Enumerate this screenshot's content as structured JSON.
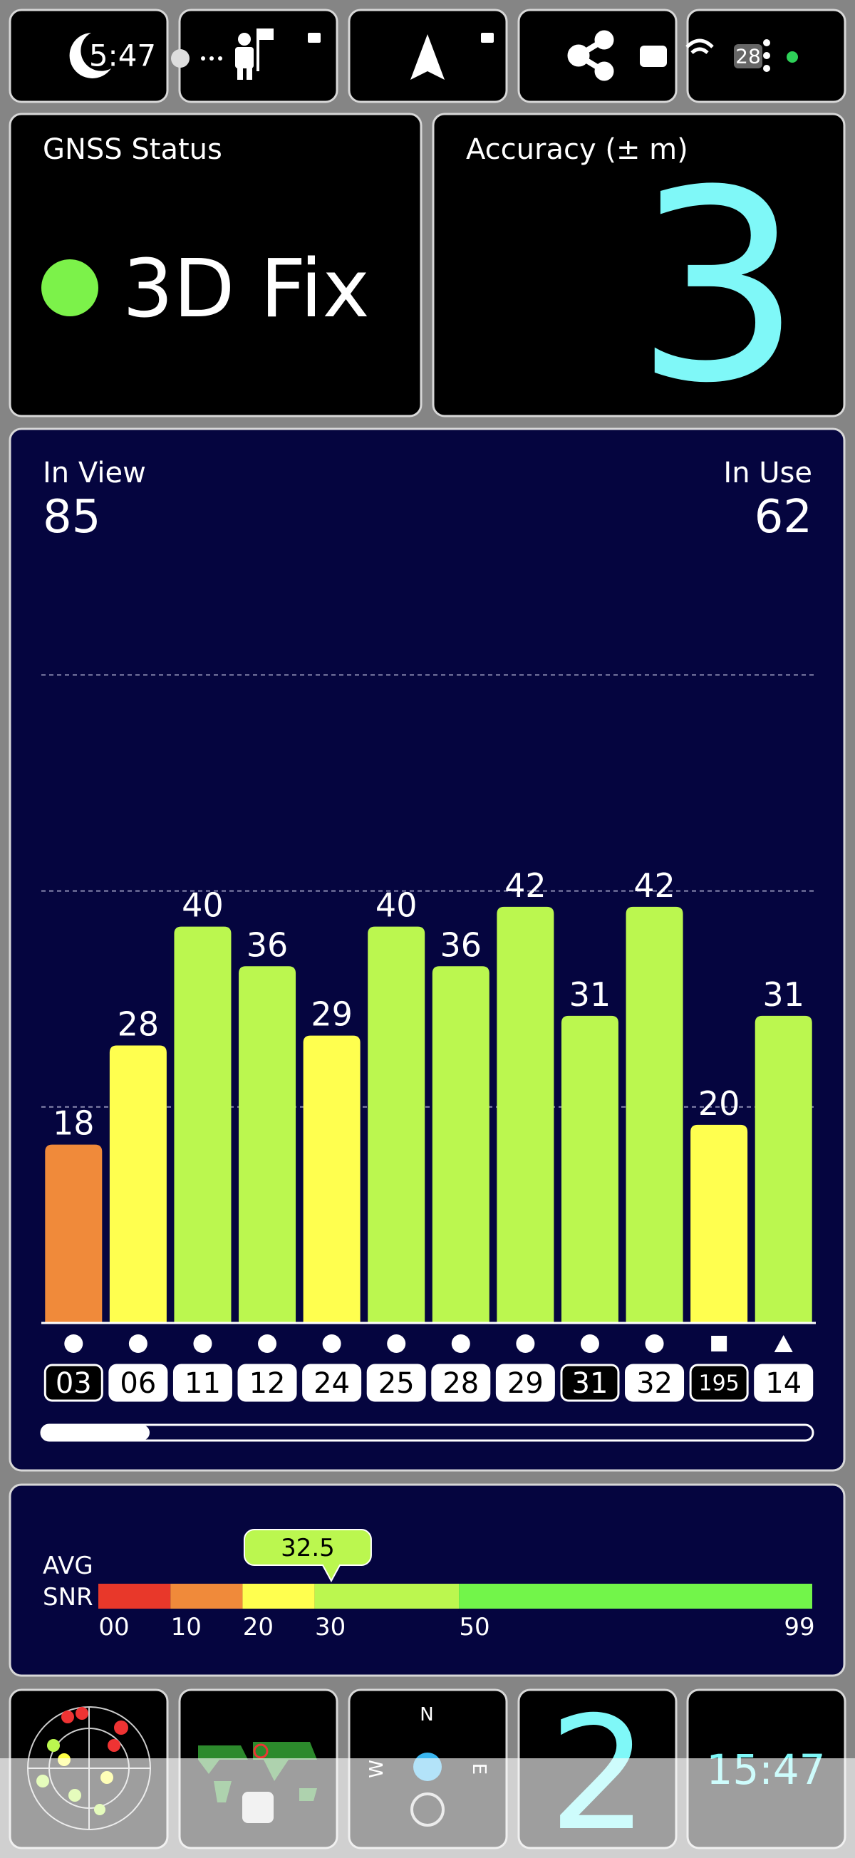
{
  "status_bar": {
    "time": "5:47",
    "battery": "28"
  },
  "gnss_status": {
    "label": "GNSS Status",
    "value": "3D Fix"
  },
  "accuracy": {
    "label": "Accuracy (± m)",
    "value": "3"
  },
  "satellites": {
    "in_view_label": "In View",
    "in_view": 85,
    "in_use_label": "In Use",
    "in_use": 62
  },
  "chart_data": {
    "type": "bar",
    "categories": [
      "03",
      "06",
      "11",
      "12",
      "24",
      "25",
      "28",
      "29",
      "31",
      "32",
      "195",
      "14"
    ],
    "values": [
      18,
      28,
      40,
      36,
      29,
      40,
      36,
      42,
      31,
      42,
      20,
      31
    ],
    "used": [
      false,
      true,
      true,
      true,
      true,
      true,
      true,
      true,
      false,
      true,
      false,
      true
    ],
    "shapes": [
      "circle",
      "circle",
      "circle",
      "circle",
      "circle",
      "circle",
      "circle",
      "circle",
      "circle",
      "circle",
      "square",
      "triangle"
    ],
    "ylim": [
      0,
      66
    ],
    "gridlines": [
      21.8,
      43.6,
      65.4
    ]
  },
  "snr_scale": {
    "label_top": "AVG",
    "label_bottom": "SNR",
    "average": 32.5,
    "xlim": [
      0,
      99
    ],
    "xticks": [
      {
        "value": 0,
        "label": "00"
      },
      10,
      20,
      30,
      50,
      99
    ],
    "segment_colors": [
      "#e8382a",
      "#f08a3a",
      "#ffff4f",
      "#bbf74f",
      "#72f54a"
    ]
  },
  "bottom_tiles": {
    "compass": [
      "N",
      "W",
      "E"
    ],
    "in_use_small": "2",
    "clock": "15:47"
  }
}
